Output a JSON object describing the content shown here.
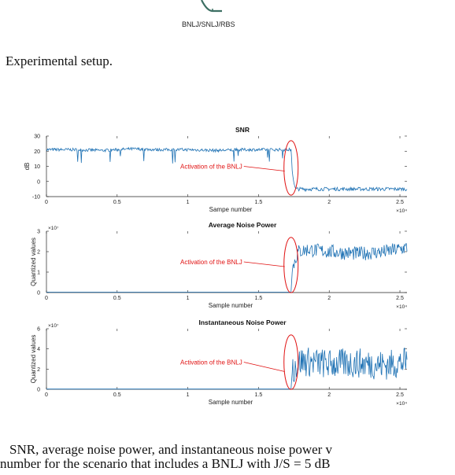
{
  "top_figure": {
    "device_label": "BNLJ/SNLJ/RBS",
    "caption": "Experimental setup."
  },
  "chart_data": [
    {
      "type": "line",
      "title": "SNR",
      "xlabel": "Sampe number",
      "ylabel": "dB",
      "xlim": [
        0,
        2.55
      ],
      "ylim": [
        -10,
        30
      ],
      "x_exponent": "×10⁴",
      "y_exponent": "",
      "xticks": [
        "0",
        "0.5",
        "1",
        "1.5",
        "2",
        "2.5"
      ],
      "yticks": [
        "-10",
        "0",
        "10",
        "20",
        "30"
      ],
      "annotation": "Activation of the BNLJ",
      "series": [
        {
          "x": [
            0,
            0.2,
            0.4,
            0.6,
            0.8,
            1.0,
            1.2,
            1.4,
            1.6,
            1.73,
            1.74,
            1.76,
            2.0,
            2.2,
            2.4,
            2.55
          ],
          "y": [
            21,
            21,
            20.5,
            21.5,
            21,
            21,
            20.5,
            21,
            21,
            21,
            5,
            -5,
            -5,
            -5,
            -5,
            -5
          ]
        }
      ]
    },
    {
      "type": "line",
      "title": "Average Noise Power",
      "xlabel": "Sample number",
      "ylabel": "Quantized values",
      "xlim": [
        0,
        2.55
      ],
      "ylim": [
        0,
        3
      ],
      "x_exponent": "×10⁴",
      "y_exponent": "×10⁷",
      "xticks": [
        "0",
        "0.5",
        "1",
        "1.5",
        "2",
        "2.5"
      ],
      "yticks": [
        "0",
        "1",
        "2",
        "3"
      ],
      "annotation": "Activation of the BNLJ",
      "series": [
        {
          "x": [
            0,
            0.5,
            1.0,
            1.5,
            1.73,
            1.74,
            1.78,
            1.85,
            2.0,
            2.2,
            2.4,
            2.55
          ],
          "y": [
            0.02,
            0.02,
            0.02,
            0.02,
            0.02,
            1.2,
            2.0,
            2.1,
            2.0,
            1.9,
            2.0,
            2.2
          ]
        }
      ]
    },
    {
      "type": "line",
      "title": "Instantaneous Noise Power",
      "xlabel": "Sample number",
      "ylabel": "Quantized values",
      "xlim": [
        0,
        2.55
      ],
      "ylim": [
        0,
        6
      ],
      "x_exponent": "×10⁴",
      "y_exponent": "×10⁷",
      "xticks": [
        "0",
        "0.5",
        "1",
        "1.5",
        "2",
        "2.5"
      ],
      "yticks": [
        "0",
        "2",
        "4",
        "6"
      ],
      "annotation": "Activation of the BNLJ",
      "series": [
        {
          "x": [
            0,
            0.5,
            1.0,
            1.5,
            1.73,
            1.74,
            1.8,
            2.0,
            2.2,
            2.4,
            2.55
          ],
          "y": [
            0.02,
            0.02,
            0.02,
            0.02,
            0.02,
            2.0,
            2.8,
            2.5,
            2.6,
            2.4,
            2.7
          ]
        }
      ]
    }
  ],
  "body_text": {
    "line1": "SNR, average noise power, and instantaneous noise power v",
    "line2": "number for the scenario that includes a BNLJ with J/S = 5 dB"
  },
  "colors": {
    "series": "#1f72b4",
    "annotation": "#e01010",
    "axis": "#222222"
  }
}
